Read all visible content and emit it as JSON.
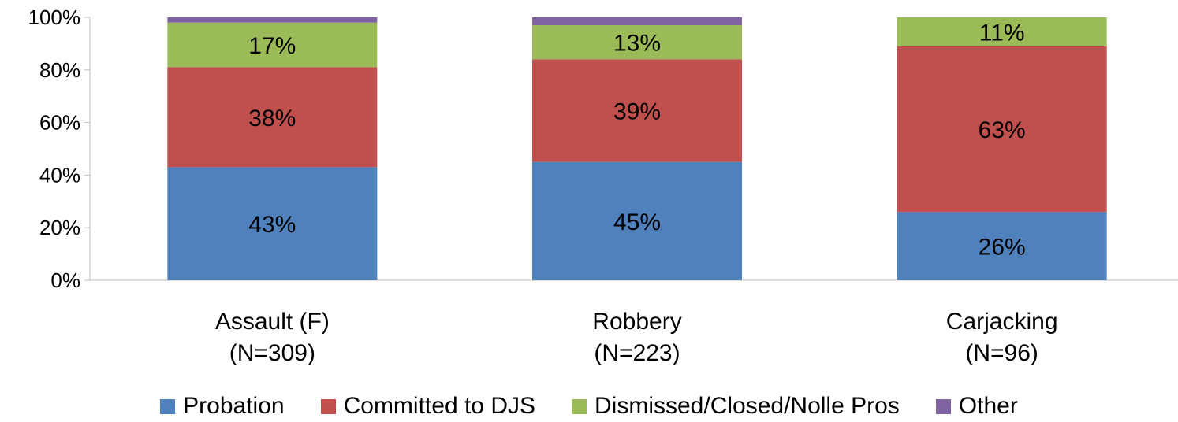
{
  "chart_data": {
    "type": "bar",
    "stacked": true,
    "categories": [
      [
        "Assault (F)",
        "(N=309)"
      ],
      [
        "Robbery",
        "(N=223)"
      ],
      [
        "Carjacking",
        "(N=96)"
      ]
    ],
    "series": [
      {
        "name": "Probation",
        "color": "#4f81bd",
        "values": [
          43,
          45,
          26
        ],
        "labels": [
          "43%",
          "45%",
          "26%"
        ]
      },
      {
        "name": "Committed to DJS",
        "color": "#c0504d",
        "values": [
          38,
          39,
          63
        ],
        "labels": [
          "38%",
          "39%",
          "63%"
        ]
      },
      {
        "name": "Dismissed/Closed/Nolle Pros",
        "color": "#9bbb59",
        "values": [
          17,
          13,
          11
        ],
        "labels": [
          "17%",
          "13%",
          "11%"
        ]
      },
      {
        "name": "Other",
        "color": "#8064a2",
        "values": [
          2,
          3,
          0
        ],
        "labels": [
          "",
          "",
          ""
        ]
      }
    ],
    "yticks": [
      "0%",
      "20%",
      "40%",
      "60%",
      "80%",
      "100%"
    ],
    "ylim": [
      0,
      100
    ],
    "grid": false,
    "legend_position": "bottom"
  }
}
